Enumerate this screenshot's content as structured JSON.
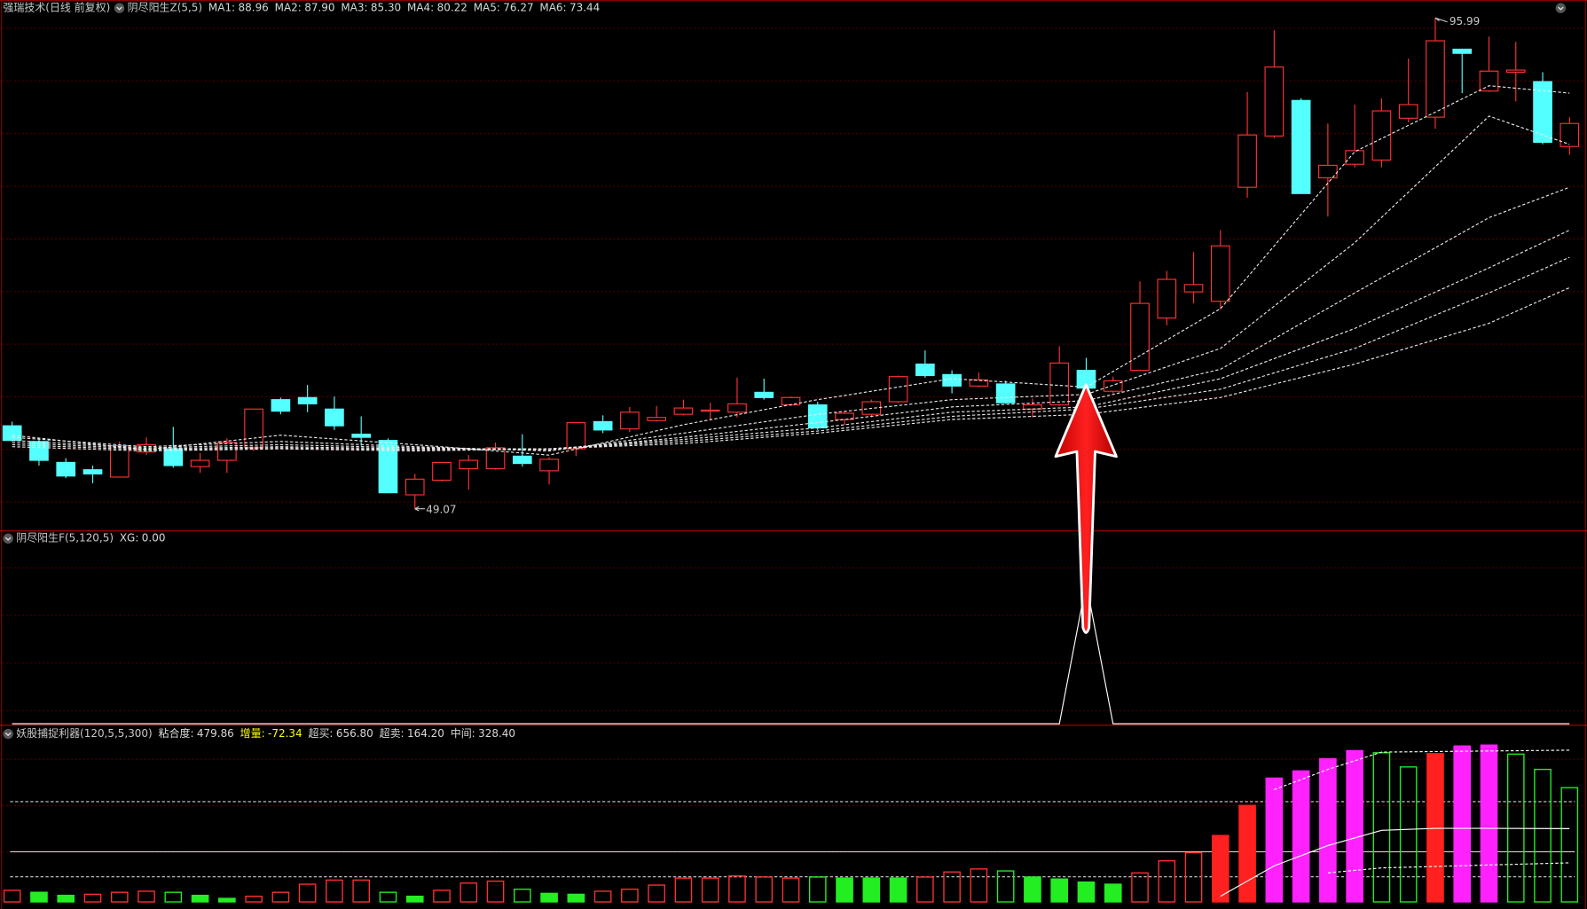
{
  "chart_data": [
    {
      "type": "candlestick",
      "title": "强瑞技术(日线 前复权)",
      "subtitle": "阴尽阳生Z(5,5)",
      "legend": [
        {
          "label": "MA1:",
          "value": 88.96
        },
        {
          "label": "MA2:",
          "value": 87.9,
          "value_label": "87.90"
        },
        {
          "label": "MA3:",
          "value": 85.3,
          "value_label": "85.30"
        },
        {
          "label": "MA4:",
          "value": 80.22
        },
        {
          "label": "MA5:",
          "value": 76.27
        },
        {
          "label": "MA6:",
          "value": 73.44
        }
      ],
      "up_color": "#ff3232",
      "down_color": "#54ffff",
      "ylim": [
        47.0,
        97.7
      ],
      "open": [
        57.0,
        55.5,
        53.5,
        52.8,
        52.1,
        54.5,
        54.8,
        53.1,
        53.7,
        54.9,
        59.5,
        59.7,
        58.6,
        56.2,
        55.6,
        50.4,
        51.8,
        52.9,
        52.9,
        54.1,
        52.7,
        54.8,
        57.4,
        56.7,
        57.5,
        58.1,
        58.4,
        58.3,
        60.2,
        59.0,
        59.0,
        57.6,
        58.1,
        59.3,
        62.9,
        61.9,
        60.8,
        61.0,
        58.6,
        59.0,
        62.3,
        60.3,
        62.3,
        67.3,
        69.8,
        68.9,
        79.8,
        84.7,
        88.1,
        80.7,
        82.0,
        82.4,
        86.4,
        86.5,
        93.0,
        89.0,
        90.8,
        89.9,
        83.7
      ],
      "close": [
        55.6,
        53.7,
        52.2,
        52.4,
        55.1,
        55.2,
        53.2,
        53.7,
        55.4,
        58.6,
        58.4,
        59.1,
        57.0,
        55.9,
        50.6,
        51.9,
        53.5,
        53.7,
        54.9,
        53.4,
        53.8,
        57.3,
        56.6,
        58.3,
        57.8,
        58.7,
        58.5,
        59.1,
        59.7,
        59.7,
        56.8,
        58.2,
        59.3,
        61.7,
        61.8,
        60.8,
        61.4,
        59.2,
        59.0,
        63.0,
        60.6,
        61.3,
        68.7,
        71.0,
        70.5,
        74.2,
        84.8,
        91.3,
        79.2,
        81.9,
        83.3,
        87.1,
        87.7,
        93.8,
        92.6,
        90.9,
        91.0,
        84.1,
        85.9
      ],
      "high": [
        57.4,
        55.8,
        53.9,
        53.2,
        55.5,
        55.9,
        56.9,
        54.4,
        55.8,
        58.6,
        59.7,
        60.9,
        59.8,
        57.9,
        55.8,
        52.4,
        53.5,
        54.2,
        55.4,
        56.2,
        54.0,
        57.3,
        58.0,
        58.8,
        58.9,
        59.5,
        59.2,
        61.6,
        61.5,
        59.8,
        59.3,
        58.4,
        59.5,
        61.8,
        64.2,
        62.3,
        62.1,
        61.3,
        59.6,
        64.6,
        63.5,
        61.7,
        70.8,
        71.8,
        73.6,
        75.7,
        88.9,
        94.8,
        88.3,
        85.9,
        87.7,
        88.3,
        92.1,
        95.99,
        93.0,
        94.2,
        93.7,
        90.8,
        86.5
      ],
      "low": [
        55.5,
        53.2,
        52.0,
        51.5,
        52.1,
        54.2,
        53.0,
        52.5,
        52.5,
        54.6,
        58.1,
        58.3,
        56.6,
        55.1,
        50.6,
        49.07,
        51.7,
        50.9,
        52.8,
        53.1,
        51.4,
        54.1,
        56.3,
        56.4,
        57.4,
        58.0,
        57.5,
        57.8,
        59.5,
        58.9,
        56.6,
        57.1,
        57.8,
        59.2,
        61.6,
        60.1,
        60.7,
        59.1,
        57.8,
        58.9,
        60.4,
        60.1,
        62.3,
        66.6,
        68.7,
        68.1,
        78.8,
        84.5,
        79.2,
        77.0,
        81.7,
        81.7,
        86.0,
        85.4,
        88.8,
        88.9,
        88.0,
        83.9,
        82.9
      ],
      "ma": [
        {
          "color": "#e8e8e8",
          "x": [
            0,
            5,
            10,
            15,
            20,
            25,
            30,
            35,
            40,
            45,
            50,
            55,
            58
          ],
          "values": [
            56.1,
            54.7,
            56.1,
            55.2,
            54.2,
            57.1,
            59.5,
            61.5,
            60.7,
            68.2,
            83.2,
            89.5,
            88.8
          ]
        },
        {
          "color": "#e8e8e8",
          "x": [
            0,
            5,
            10,
            15,
            20,
            25,
            30,
            35,
            40,
            45,
            50,
            55,
            58
          ],
          "values": [
            55.9,
            55.0,
            55.5,
            55.0,
            54.6,
            56.3,
            58.1,
            59.5,
            60.0,
            64.4,
            74.5,
            86.6,
            83.9
          ]
        },
        {
          "color": "#e8e8e8",
          "x": [
            0,
            5,
            10,
            15,
            20,
            25,
            30,
            35,
            40,
            45,
            50,
            55,
            58
          ],
          "values": [
            55.6,
            54.9,
            55.2,
            54.9,
            54.7,
            55.9,
            57.3,
            58.8,
            59.4,
            62.4,
            69.7,
            76.9,
            79.8
          ]
        },
        {
          "color": "#e8e8e8",
          "x": [
            0,
            5,
            10,
            15,
            20,
            25,
            30,
            35,
            40,
            45,
            50,
            55,
            58
          ],
          "values": [
            55.4,
            54.8,
            55.0,
            54.8,
            54.8,
            55.7,
            56.8,
            58.3,
            58.8,
            61.5,
            66.3,
            72.1,
            75.7
          ]
        },
        {
          "color": "#e8e8e8",
          "x": [
            0,
            5,
            10,
            15,
            20,
            25,
            30,
            35,
            40,
            45,
            50,
            55,
            58
          ],
          "values": [
            55.2,
            54.7,
            54.9,
            54.7,
            54.8,
            55.5,
            56.5,
            57.9,
            58.6,
            60.5,
            64.4,
            69.7,
            73.1
          ]
        },
        {
          "color": "#e8e8e8",
          "x": [
            0,
            5,
            10,
            15,
            20,
            25,
            30,
            35,
            40,
            45,
            50,
            55,
            58
          ],
          "values": [
            55.0,
            54.6,
            54.8,
            54.6,
            54.8,
            55.3,
            56.3,
            57.6,
            58.1,
            59.7,
            62.9,
            66.8,
            70.2
          ]
        }
      ]
    },
    {
      "type": "line",
      "title": "阴尽阳生F(5,120,5)",
      "legend": [
        {
          "label": "XG:",
          "value": 0,
          "value_label": "0.00"
        }
      ],
      "color": "#ffffff",
      "ylim": [
        0,
        1.35
      ],
      "values": [
        0,
        0,
        0,
        0,
        0,
        0,
        0,
        0,
        0,
        0,
        0,
        0,
        0,
        0,
        0,
        0,
        0,
        0,
        0,
        0,
        0,
        0,
        0,
        0,
        0,
        0,
        0,
        0,
        0,
        0,
        0,
        0,
        0,
        0,
        0,
        0,
        0,
        0,
        0,
        0,
        1,
        0,
        0,
        0,
        0,
        0,
        0,
        0,
        0,
        0,
        0,
        0,
        0,
        0,
        0,
        0,
        0,
        0,
        0
      ]
    },
    {
      "type": "bar",
      "title": "妖股捕捉利器(120,5,5,300)",
      "legend": [
        {
          "label": "粘合度:",
          "value": 479.86
        },
        {
          "label": "增量:",
          "value": -72.34,
          "color": "#ffff00"
        },
        {
          "label": "超买:",
          "value": 656.8,
          "value_label": "656.80",
          "line": "dashed"
        },
        {
          "label": "超卖:",
          "value": 164.2,
          "value_label": "164.20",
          "line": "dashed"
        },
        {
          "label": "中间:",
          "value": 328.4,
          "value_label": "328.40",
          "line": "solid"
        }
      ],
      "ylim": [
        0,
        1147
      ],
      "values": [
        76,
        63,
        43,
        50,
        63,
        70,
        63,
        43,
        23,
        37,
        63,
        116,
        143,
        143,
        63,
        37,
        76,
        123,
        136,
        83,
        56,
        50,
        70,
        83,
        110,
        156,
        156,
        170,
        163,
        156,
        163,
        156,
        156,
        156,
        163,
        196,
        216,
        203,
        163,
        150,
        130,
        116,
        190,
        269,
        322,
        435,
        632,
        811,
        858,
        938,
        991,
        977,
        884,
        971,
        1021,
        1027,
        968,
        868,
        748
      ],
      "colors": [
        "#ff3030",
        "#22ee22",
        "#22ee22",
        "#ff3030",
        "#ff3030",
        "#ff3030",
        "#22ee22",
        "#22ee22",
        "#22ee22",
        "#ff3030",
        "#ff3030",
        "#ff3030",
        "#ff3030",
        "#ff3030",
        "#22ee22",
        "#22ee22",
        "#ff3030",
        "#ff3030",
        "#ff3030",
        "#22ee22",
        "#22ee22",
        "#22ee22",
        "#ff3030",
        "#ff3030",
        "#ff3030",
        "#ff3030",
        "#ff3030",
        "#ff3030",
        "#ff3030",
        "#ff3030",
        "#22ee22",
        "#22ee22",
        "#22ee22",
        "#22ee22",
        "#ff3030",
        "#ff3030",
        "#ff3030",
        "#22ee22",
        "#22ee22",
        "#22ee22",
        "#22ee22",
        "#22ee22",
        "#ff3030",
        "#ff3030",
        "#ff3030",
        "#ff2020",
        "#ff2020",
        "#ff22ff",
        "#ff22ff",
        "#ff22ff",
        "#ff22ff",
        "#22ee22",
        "#22ee22",
        "#ff2020",
        "#ff22ff",
        "#ff22ff",
        "#22ee22",
        "#22ee22",
        "#22ee22"
      ],
      "hollow": [
        true,
        false,
        false,
        true,
        true,
        true,
        true,
        false,
        false,
        true,
        true,
        true,
        true,
        true,
        true,
        false,
        true,
        true,
        true,
        true,
        false,
        false,
        true,
        true,
        true,
        true,
        true,
        true,
        true,
        true,
        true,
        false,
        false,
        false,
        true,
        true,
        true,
        true,
        false,
        false,
        false,
        false,
        true,
        true,
        true,
        false,
        false,
        false,
        false,
        false,
        false,
        true,
        true,
        false,
        false,
        false,
        true,
        true,
        true
      ],
      "lines": [
        {
          "color": "#ffffff",
          "dashed": false,
          "x": [
            45,
            47,
            49,
            51,
            53,
            55,
            58
          ],
          "values": [
            37,
            236,
            369,
            469,
            482,
            482,
            480
          ]
        },
        {
          "color": "#ffffff",
          "dashed": true,
          "x": [
            47,
            49,
            51,
            58
          ],
          "values": [
            735,
            868,
            981,
            994
          ]
        },
        {
          "color": "#ffffff",
          "dashed": true,
          "x": [
            49,
            51,
            58
          ],
          "values": [
            190,
            223,
            256
          ]
        }
      ]
    }
  ]
}
